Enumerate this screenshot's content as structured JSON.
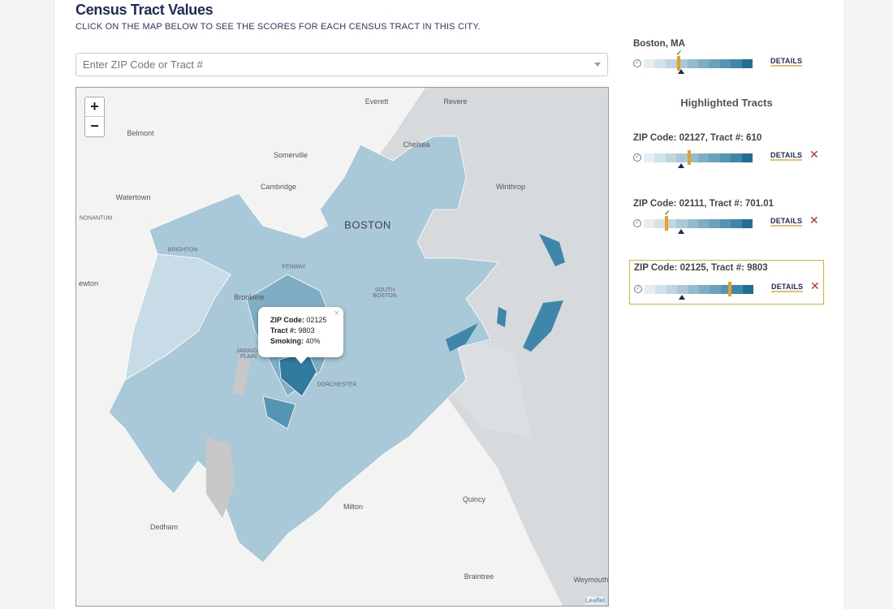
{
  "header": {
    "title": "Census Tract Values",
    "subtitle": "CLICK ON THE MAP BELOW TO SEE THE SCORES FOR EACH CENSUS TRACT IN THIS CITY."
  },
  "search": {
    "placeholder": "Enter ZIP Code or Tract #",
    "value": ""
  },
  "map": {
    "zoom_in": "+",
    "zoom_out": "−",
    "attribution": "Leaflet",
    "labels": [
      "Everett",
      "Revere",
      "Belmont",
      "Chelsea",
      "Somerville",
      "Cambridge",
      "Winthrop",
      "Watertown",
      "NONANTUM",
      "BOSTON",
      "BRIGHTON",
      "FENWAY",
      "ewton",
      "Brookline",
      "SOUTH BOSTON",
      "JAMAICA PLAIN",
      "DORCHESTER",
      "Quincy",
      "Milton",
      "Dedham",
      "Braintree",
      "Weymouth"
    ],
    "popup": {
      "zip_label": "ZIP Code:",
      "zip": "02125",
      "tract_label": "Tract #:",
      "tract": "9803",
      "metric_label": "Smoking:",
      "metric": "40%",
      "close": "×"
    }
  },
  "scale_colors": [
    "#e6eef2",
    "#d2e2ea",
    "#bfd6e1",
    "#a9c9d8",
    "#93bbcf",
    "#7eaec6",
    "#6aa1bd",
    "#5595b4",
    "#3e87aa",
    "#1f6f95"
  ],
  "accent": "#e8a020",
  "city": {
    "title": "Boston, MA",
    "marker": 0.32,
    "average": 0.34,
    "details": "DETAILS",
    "below_average": true
  },
  "highlighted_title": "Highlighted Tracts",
  "tracts": [
    {
      "title": "ZIP Code: 02127, Tract #: 610",
      "marker": 0.42,
      "average": 0.34,
      "details": "DETAILS",
      "remove": "✕",
      "below_average": false,
      "selected": false
    },
    {
      "title": "ZIP Code: 02111, Tract #: 701.01",
      "marker": 0.21,
      "average": 0.34,
      "details": "DETAILS",
      "remove": "✕",
      "below_average": true,
      "selected": false
    },
    {
      "title": "ZIP Code: 02125, Tract #: 9803",
      "marker": 0.78,
      "average": 0.34,
      "details": "DETAILS",
      "remove": "✕",
      "below_average": false,
      "selected": true
    }
  ]
}
